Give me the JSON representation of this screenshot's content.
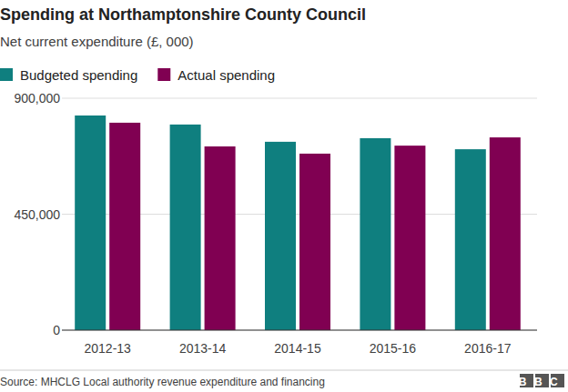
{
  "chart_data": {
    "type": "bar",
    "title": "Spending at Northamptonshire County Council",
    "subtitle": "Net current expenditure (£, 000)",
    "categories": [
      "2012-13",
      "2013-14",
      "2014-15",
      "2015-16",
      "2016-17"
    ],
    "series": [
      {
        "name": "Budgeted spending",
        "color": "#0f7f7f",
        "values": [
          833000,
          798000,
          731000,
          745000,
          702000
        ]
      },
      {
        "name": "Actual spending",
        "color": "#800052",
        "values": [
          805000,
          713000,
          685000,
          716000,
          748000
        ]
      }
    ],
    "ylim": [
      0,
      900000
    ],
    "yticks": [
      0,
      {
        "value": 450000,
        "label": "450,000"
      },
      {
        "value": 900000,
        "label": "900,000"
      }
    ],
    "grid": true,
    "legend": "top",
    "source": "Source: MHCLG Local authority revenue expenditure and financing",
    "logo": "BBC"
  }
}
